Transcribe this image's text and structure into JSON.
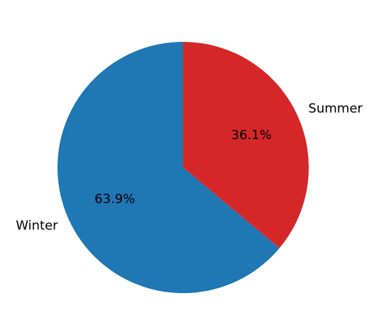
{
  "chart_data": {
    "type": "pie",
    "slices": [
      {
        "label": "Summer",
        "value": 36.1,
        "pct_label": "36.1%",
        "color": "#d62728"
      },
      {
        "label": "Winter",
        "value": 63.9,
        "pct_label": "63.9%",
        "color": "#1f77b4"
      }
    ],
    "start_angle_deg": 90,
    "direction": "clockwise"
  }
}
